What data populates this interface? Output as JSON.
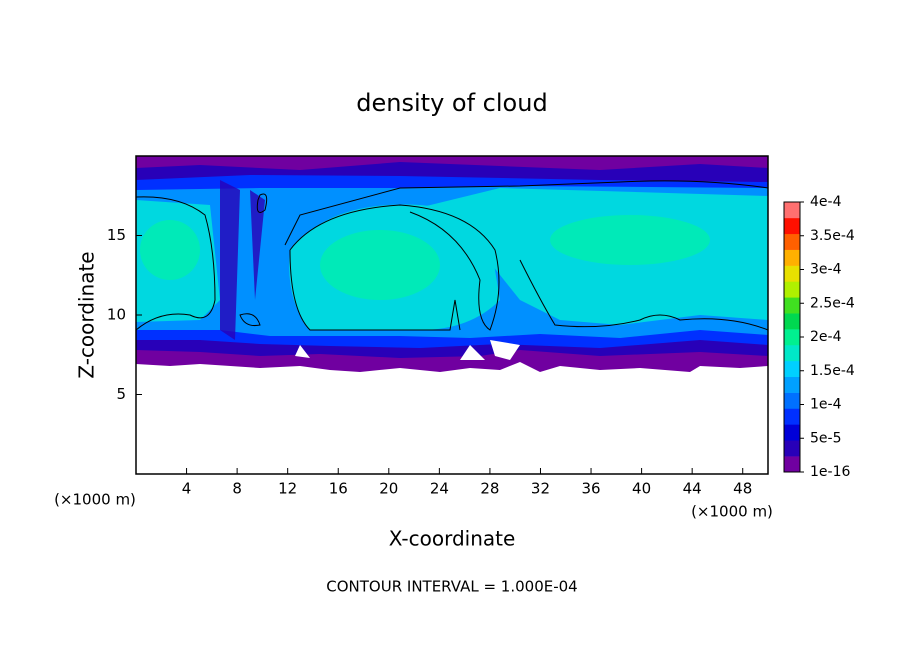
{
  "chart_data": {
    "type": "contour",
    "title": "density of cloud",
    "xlabel": "X-coordinate",
    "ylabel": "Z-coordinate",
    "x_unit_label": "(×1000 m)",
    "y_unit_label": "(×1000 m)",
    "annotation": "CONTOUR INTERVAL = 1.000E-04",
    "xlim": [
      0,
      50
    ],
    "xticks": [
      4,
      8,
      12,
      16,
      20,
      24,
      28,
      32,
      36,
      40,
      44,
      48
    ],
    "ylim": [
      0,
      20
    ],
    "yticks": [
      5,
      10,
      15
    ],
    "colorbar": {
      "clim": [
        1e-16,
        0.0004
      ],
      "ticks": [
        {
          "value": 1e-16,
          "label": "1e-16"
        },
        {
          "value": 5e-05,
          "label": "5e-5"
        },
        {
          "value": 0.0001,
          "label": "1e-4"
        },
        {
          "value": 0.00015,
          "label": "1.5e-4"
        },
        {
          "value": 0.0002,
          "label": "2e-4"
        },
        {
          "value": 0.00025,
          "label": "2.5e-4"
        },
        {
          "value": 0.0003,
          "label": "3e-4"
        },
        {
          "value": 0.00035,
          "label": "3.5e-4"
        },
        {
          "value": 0.0004,
          "label": "4e-4"
        }
      ],
      "colors": [
        "#7000a0",
        "#2800b8",
        "#0000d8",
        "#0030ff",
        "#0070ff",
        "#00a0ff",
        "#00d0ff",
        "#00e8c8",
        "#00f090",
        "#00d850",
        "#40e020",
        "#b0f000",
        "#e8e000",
        "#ffb000",
        "#ff6000",
        "#ff1000",
        "#ff7070"
      ]
    }
  }
}
